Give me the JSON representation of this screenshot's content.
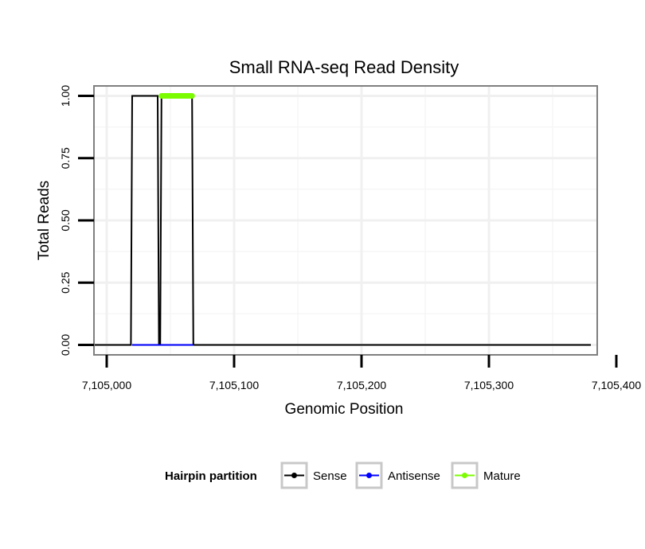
{
  "chart_data": {
    "type": "line",
    "title": "Small RNA-seq Read Density",
    "xlabel": "Genomic Position",
    "ylabel": "Total Reads",
    "xlim": [
      7104990,
      7105385
    ],
    "ylim": [
      -0.04,
      1.04
    ],
    "x_ticks": [
      {
        "value": 7105000,
        "label": "7,105,000"
      },
      {
        "value": 7105100,
        "label": "7,105,100"
      },
      {
        "value": 7105200,
        "label": "7,105,200"
      },
      {
        "value": 7105300,
        "label": "7,105,300"
      },
      {
        "value": 7105400,
        "label": "7,105,400"
      }
    ],
    "y_ticks": [
      {
        "value": 0.0,
        "label": "0.00"
      },
      {
        "value": 0.25,
        "label": "0.25"
      },
      {
        "value": 0.5,
        "label": "0.50"
      },
      {
        "value": 0.75,
        "label": "0.75"
      },
      {
        "value": 1.0,
        "label": "1.00"
      }
    ],
    "grid": true,
    "legend": {
      "title": "Hairpin partition",
      "placement": "bottom",
      "entries": [
        {
          "label": "Sense",
          "color": "#000000"
        },
        {
          "label": "Antisense",
          "color": "#0000ff"
        },
        {
          "label": "Mature",
          "color": "#7cfc00"
        }
      ]
    },
    "series": [
      {
        "name": "Sense",
        "color": "#000000",
        "x": [
          7104990,
          7105019,
          7105020,
          7105040,
          7105041,
          7105042,
          7105043,
          7105067,
          7105068,
          7105380
        ],
        "y": [
          0,
          0,
          1,
          1,
          0,
          0,
          1,
          1,
          0,
          0
        ]
      },
      {
        "name": "Antisense",
        "color": "#0000ff",
        "x": [
          7105020,
          7105068
        ],
        "y": [
          0,
          0
        ]
      },
      {
        "name": "Mature",
        "color": "#7cfc00",
        "x": [
          7105043,
          7105067
        ],
        "y": [
          1,
          1
        ]
      }
    ]
  }
}
